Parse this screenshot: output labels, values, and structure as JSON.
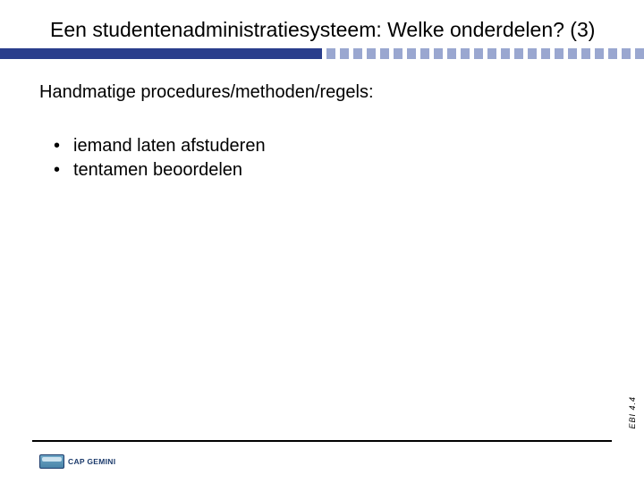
{
  "colors": {
    "accent": "#2a3e8c",
    "accent_light": "#9aa7d0",
    "accent_dark": "#1b3a6b",
    "background": "#ffffff",
    "text": "#000000"
  },
  "typography": {
    "title_fontsize": 23,
    "section_fontsize": 20,
    "bullet_fontsize": 20,
    "side_label_fontsize": 9,
    "logo_text_fontsize": 8.5,
    "font_family": "Arial"
  },
  "layout": {
    "slide_width": 720,
    "slide_height": 540,
    "rule_solid_width": 360,
    "rule_tick_count": 28
  },
  "title": "Een studentenadministratiesysteem: Welke onderdelen? (3)",
  "section_heading": "Handmatige procedures/methoden/regels:",
  "bullets": [
    "iemand laten afstuderen",
    "tentamen beoordelen"
  ],
  "side_label": "EBI 4.4",
  "logo_text": "CAP GEMINI"
}
